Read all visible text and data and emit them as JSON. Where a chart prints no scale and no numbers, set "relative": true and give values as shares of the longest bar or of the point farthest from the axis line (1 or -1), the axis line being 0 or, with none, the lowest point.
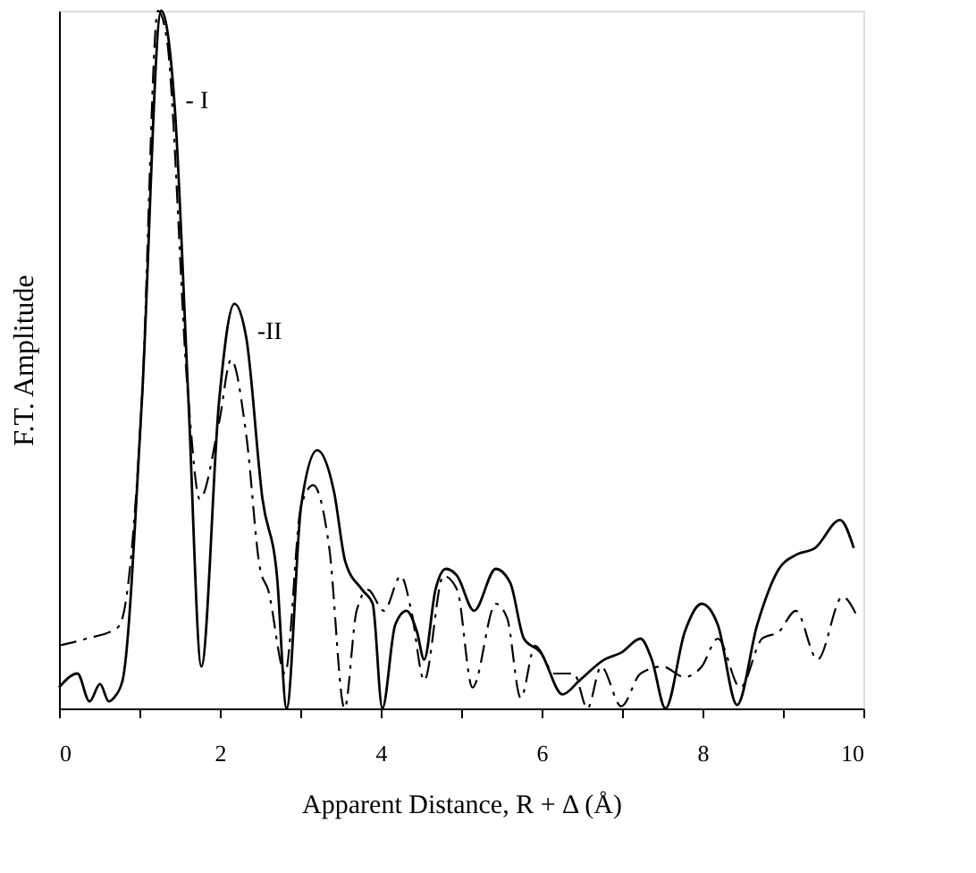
{
  "chart_data": {
    "type": "line",
    "relative": true,
    "xlabel": "Apparent Distance, R + Δ  (Å)",
    "ylabel": "F.T.  Amplitude",
    "xlim": [
      0,
      10
    ],
    "xticks": [
      0,
      {
        "value": 1,
        "label": null
      },
      2,
      {
        "value": 3,
        "label": null
      },
      4,
      {
        "value": 5,
        "label": null
      },
      6,
      {
        "value": 7,
        "label": null
      },
      8,
      {
        "value": 9,
        "label": null
      },
      10
    ],
    "tick_labels": "x",
    "grid": false,
    "series": [
      {
        "color": "#000000",
        "line_style": "solid",
        "x": [
          0,
          0.23,
          0.38,
          0.51,
          0.62,
          0.68,
          0.79,
          1.03,
          1.27,
          1.44,
          1.61,
          1.77,
          1.99,
          2.18,
          2.33,
          2.53,
          2.71,
          2.83,
          3.01,
          3.21,
          3.42,
          3.56,
          3.77,
          3.9,
          4.02,
          4.18,
          4.32,
          4.45,
          4.54,
          4.68,
          4.81,
          4.95,
          5.16,
          5.43,
          5.61,
          5.78,
          5.99,
          6.26,
          6.47,
          6.78,
          6.99,
          7.23,
          7.37,
          7.54,
          7.78,
          7.99,
          8.19,
          8.43,
          8.68,
          8.95,
          9.16,
          9.4,
          9.71,
          9.88
        ],
        "values": [
          0.03,
          0.05,
          0.01,
          0.035,
          0.01,
          0.015,
          0.04,
          0.44,
          1.0,
          0.86,
          0.44,
          0.06,
          0.44,
          0.58,
          0.53,
          0.3,
          0.19,
          0,
          0.29,
          0.37,
          0.31,
          0.21,
          0.17,
          0.15,
          0,
          0.12,
          0.14,
          0.11,
          0.07,
          0.17,
          0.2,
          0.19,
          0.14,
          0.2,
          0.18,
          0.1,
          0.08,
          0.02,
          0.04,
          0.07,
          0.08,
          0.1,
          0.07,
          0,
          0.11,
          0.15,
          0.12,
          0.005,
          0.12,
          0.2,
          0.22,
          0.23,
          0.27,
          0.23
        ]
      },
      {
        "color": "#000000",
        "line_style": "dashed",
        "x": [
          0,
          0.34,
          0.72,
          0.79,
          1.03,
          1.23,
          1.34,
          1.61,
          1.75,
          1.99,
          2.14,
          2.33,
          2.5,
          2.6,
          2.81,
          3.01,
          3.16,
          3.36,
          3.55,
          3.7,
          3.84,
          4.04,
          4.25,
          4.38,
          4.54,
          4.78,
          4.95,
          5.14,
          5.43,
          5.57,
          5.74,
          5.92,
          6.16,
          6.4,
          6.57,
          6.74,
          6.99,
          7.23,
          7.5,
          7.78,
          7.99,
          8.19,
          8.47,
          8.74,
          8.95,
          9.16,
          9.43,
          9.74,
          9.93
        ],
        "values": [
          0.09,
          0.1,
          0.115,
          0.13,
          0.44,
          1.0,
          0.96,
          0.44,
          0.3,
          0.41,
          0.5,
          0.39,
          0.2,
          0.17,
          0.05,
          0.29,
          0.32,
          0.23,
          0,
          0.14,
          0.17,
          0.14,
          0.19,
          0.14,
          0.04,
          0.19,
          0.17,
          0.03,
          0.15,
          0.13,
          0.015,
          0.09,
          0.05,
          0.05,
          0,
          0.06,
          0.003,
          0.05,
          0.06,
          0.045,
          0.06,
          0.1,
          0.03,
          0.1,
          0.11,
          0.14,
          0.07,
          0.16,
          0.13
        ]
      }
    ],
    "annotations": [
      {
        "text": "- I",
        "x": 1.44,
        "y": 0.86
      },
      {
        "text": "-II",
        "x": 2.33,
        "y": 0.53
      }
    ]
  }
}
